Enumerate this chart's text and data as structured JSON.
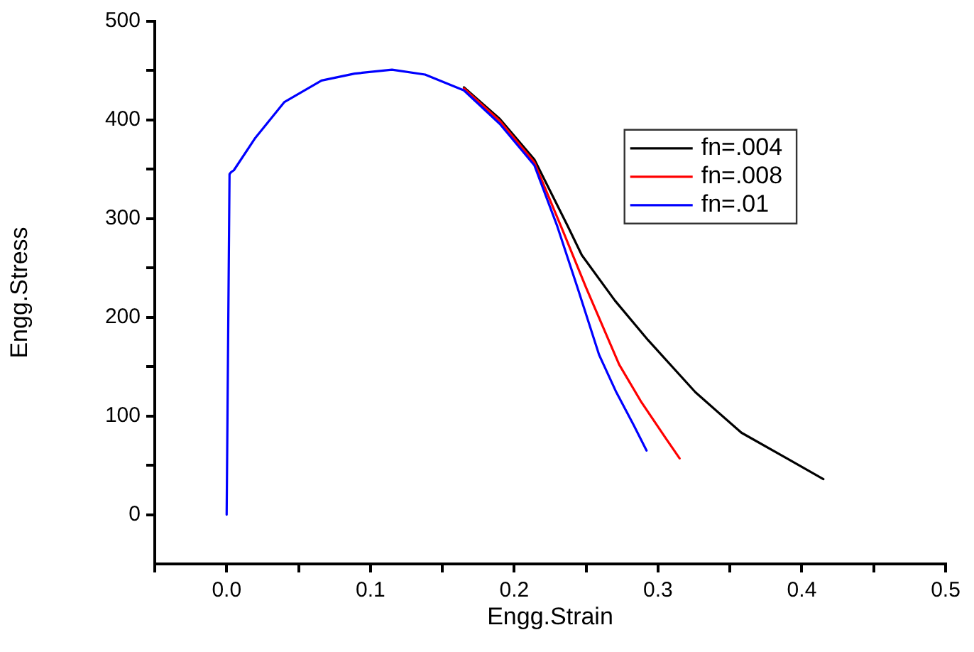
{
  "chart_data": {
    "type": "line",
    "xlabel": "Engg.Strain",
    "ylabel": "Engg.Stress",
    "xlim": [
      -0.05,
      0.5
    ],
    "xticks": [
      {
        "value": -0.05,
        "label": null
      },
      {
        "value": 0,
        "label": "0.0"
      },
      {
        "value": 0.05,
        "label": null
      },
      0.1,
      {
        "value": 0.15,
        "label": null
      },
      0.2,
      {
        "value": 0.25,
        "label": null
      },
      0.3,
      {
        "value": 0.35,
        "label": null
      },
      0.4,
      {
        "value": 0.45,
        "label": null
      },
      0.5
    ],
    "ylim": [
      -50,
      500
    ],
    "yticks": [
      0,
      {
        "value": 50,
        "label": null
      },
      100,
      {
        "value": 150,
        "label": null
      },
      200,
      {
        "value": 250,
        "label": null
      },
      300,
      {
        "value": 350,
        "label": null
      },
      400,
      {
        "value": 450,
        "label": null
      },
      500
    ],
    "grid": false,
    "legend": "top right",
    "marker": "none",
    "line_style": "solid",
    "series": [
      {
        "name": "fn=.004",
        "color": "#000000",
        "x": [
          0.165,
          0.19,
          0.214,
          0.237,
          0.247,
          0.27,
          0.293,
          0.326,
          0.358,
          0.392,
          0.415
        ],
        "values": [
          433,
          401,
          360,
          293,
          263,
          217,
          177,
          124,
          83,
          55,
          36
        ]
      },
      {
        "name": "fn=.008",
        "color": "#ff0000",
        "x": [
          0.165,
          0.19,
          0.214,
          0.234,
          0.25,
          0.273,
          0.288,
          0.306,
          0.315
        ],
        "values": [
          432,
          399,
          357,
          287,
          230,
          152,
          115,
          76,
          57
        ]
      },
      {
        "name": "fn=.01",
        "color": "#0000ff",
        "x": [
          0,
          0.002,
          0.003,
          0.005,
          0.02,
          0.04,
          0.066,
          0.089,
          0.115,
          0.138,
          0.165,
          0.19,
          0.214,
          0.23,
          0.244,
          0.259,
          0.271,
          0.283,
          0.292
        ],
        "values": [
          0,
          345,
          347,
          349,
          382,
          418,
          440,
          447,
          451,
          446,
          430,
          396,
          354,
          292,
          230,
          162,
          124,
          91,
          65
        ]
      }
    ]
  }
}
